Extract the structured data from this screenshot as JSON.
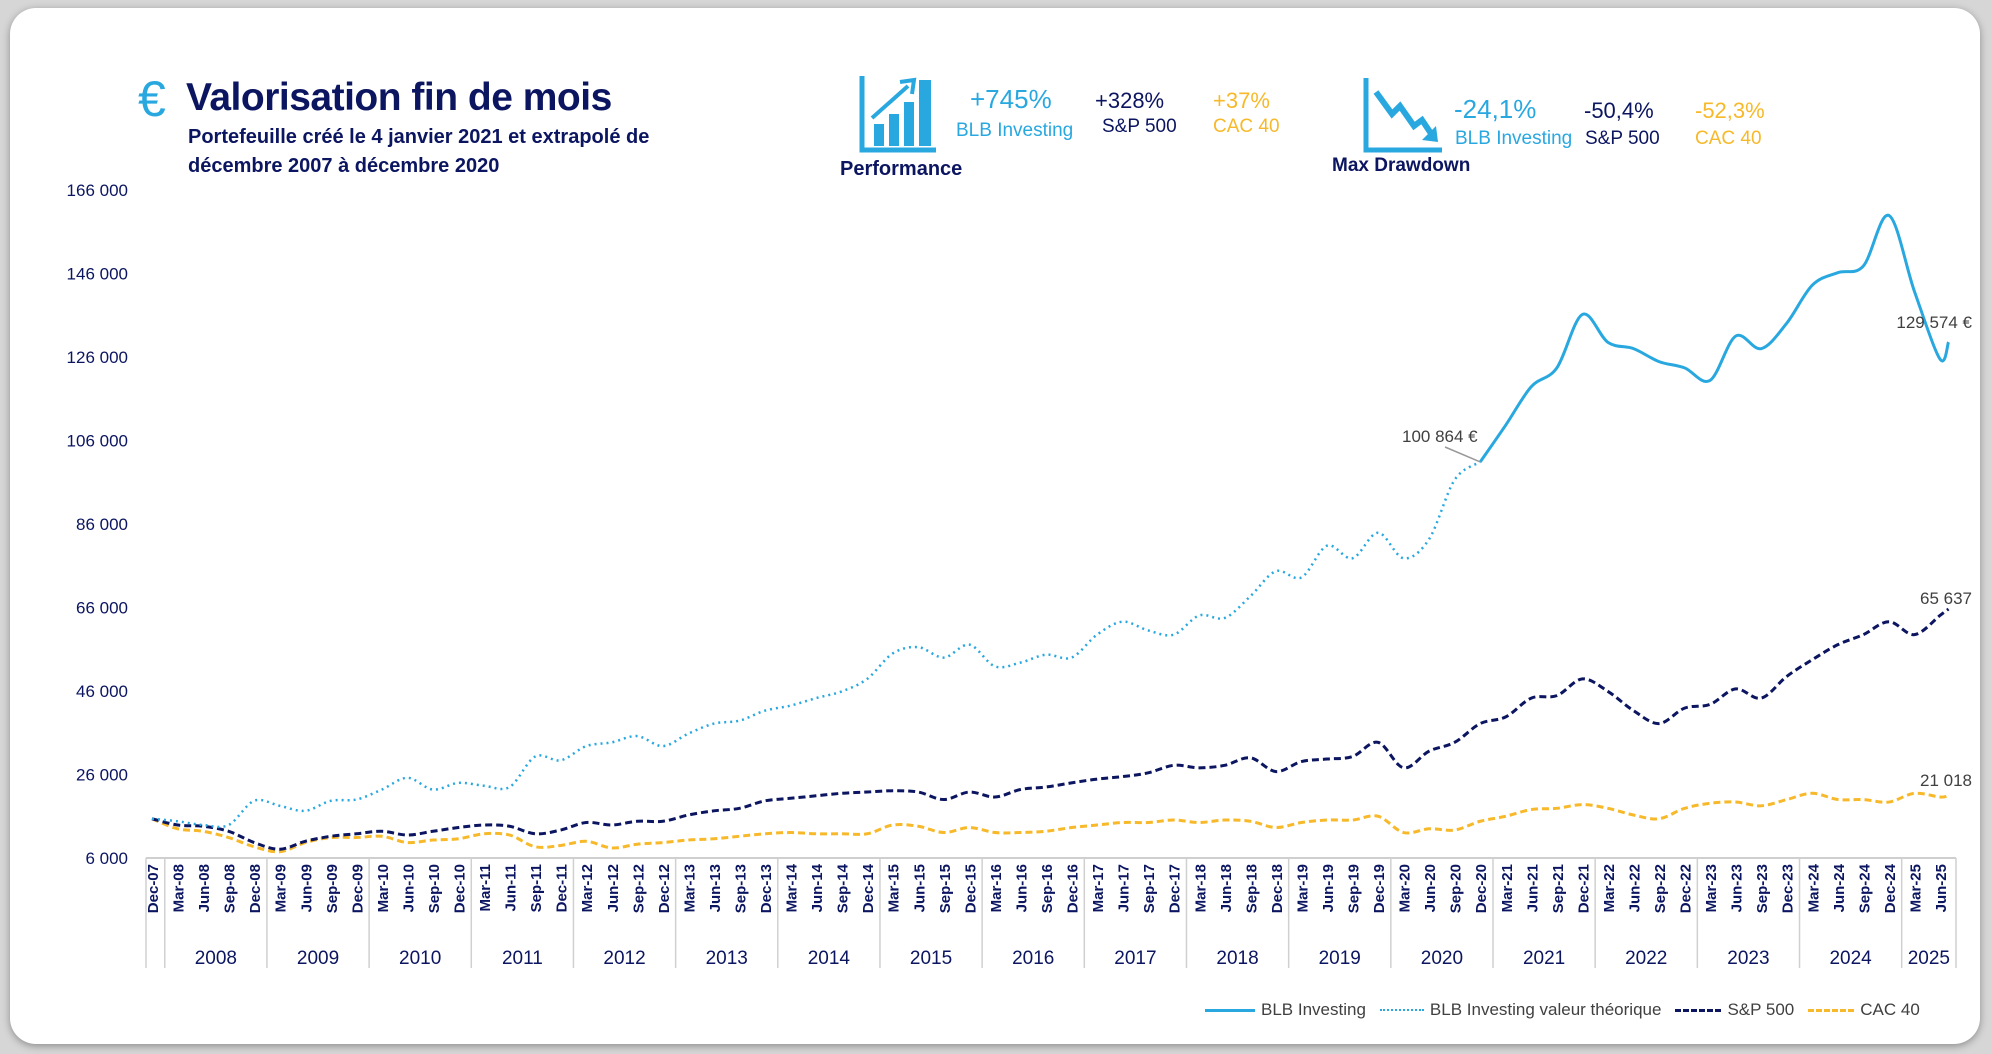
{
  "header": {
    "currency_symbol": "€",
    "title": "Valorisation fin de mois",
    "subtitle_line1": "Portefeuille créé le 4 janvier 2021 et extrapolé de",
    "subtitle_line2": "décembre 2007 à décembre 2020"
  },
  "performance": {
    "label": "Performance",
    "icon": "bar-chart-up-icon",
    "blb_value": "+745%",
    "blb_label": "BLB Investing",
    "sp_value": "+328%",
    "sp_label": "S&P 500",
    "cac_value": "+37%",
    "cac_label": "CAC 40"
  },
  "drawdown": {
    "label": "Max Drawdown",
    "icon": "chart-down-icon",
    "blb_value": "-24,1%",
    "blb_label": "BLB Investing",
    "sp_value": "-50,4%",
    "sp_label": "S&P 500",
    "cac_value": "-52,3%",
    "cac_label": "CAC 40"
  },
  "colors": {
    "navy": "#0b1560",
    "blue": "#29a8e0",
    "yellow": "#f7b92a"
  },
  "chart_data": {
    "type": "line",
    "title": "Valorisation fin de mois",
    "xlabel": "",
    "ylabel": "",
    "ylim": [
      6000,
      166000
    ],
    "y_ticks": [
      6000,
      26000,
      46000,
      66000,
      86000,
      106000,
      126000,
      146000,
      166000
    ],
    "y_tick_labels": [
      "6 000",
      "26 000",
      "46 000",
      "66 000",
      "86 000",
      "106 000",
      "126 000",
      "146 000",
      "166 000"
    ],
    "x_labels": [
      "Dec-07",
      "Mar-08",
      "Jun-08",
      "Sep-08",
      "Dec-08",
      "Mar-09",
      "Jun-09",
      "Sep-09",
      "Dec-09",
      "Mar-10",
      "Jun-10",
      "Sep-10",
      "Dec-10",
      "Mar-11",
      "Jun-11",
      "Sep-11",
      "Dec-11",
      "Mar-12",
      "Jun-12",
      "Sep-12",
      "Dec-12",
      "Mar-13",
      "Jun-13",
      "Sep-13",
      "Dec-13",
      "Mar-14",
      "Jun-14",
      "Sep-14",
      "Dec-14",
      "Mar-15",
      "Jun-15",
      "Sep-15",
      "Dec-15",
      "Mar-16",
      "Jun-16",
      "Sep-16",
      "Dec-16",
      "Mar-17",
      "Jun-17",
      "Sep-17",
      "Dec-17",
      "Mar-18",
      "Jun-18",
      "Sep-18",
      "Dec-18",
      "Mar-19",
      "Jun-19",
      "Sep-19",
      "Dec-19",
      "Mar-20",
      "Jun-20",
      "Sep-20",
      "Dec-20",
      "Mar-21",
      "Jun-21",
      "Sep-21",
      "Dec-21",
      "Mar-22",
      "Jun-22",
      "Sep-22",
      "Dec-22",
      "Mar-23",
      "Jun-23",
      "Sep-23",
      "Dec-23",
      "Mar-24",
      "Jun-24",
      "Sep-24",
      "Dec-24",
      "Mar-25",
      "Jun-25"
    ],
    "year_labels": [
      "2008",
      "2009",
      "2010",
      "2011",
      "2012",
      "2013",
      "2014",
      "2015",
      "2016",
      "2017",
      "2018",
      "2019",
      "2020",
      "2021",
      "2022",
      "2023",
      "2024",
      "2025"
    ],
    "grid": false,
    "legend_position": "bottom-right",
    "series": [
      {
        "name": "BLB Investing",
        "style": "solid",
        "color": "#29a8e0",
        "start_index": 52,
        "values": [
          100864,
          109700,
          118900,
          123400,
          136200,
          129500,
          128000,
          124900,
          123400,
          120400,
          131000,
          128000,
          134100,
          143200,
          146200,
          147800,
          159900,
          141700,
          125500
        ],
        "final_value": 129574,
        "final_label": "129 574 €",
        "start_label": "100 864 €"
      },
      {
        "name": "BLB Investing valeur théorique",
        "style": "dotted",
        "color": "#29a8e0",
        "start_index": 0,
        "values": [
          15400,
          14800,
          13900,
          13900,
          19700,
          18500,
          17300,
          19700,
          20000,
          22400,
          25200,
          22400,
          24000,
          23300,
          23000,
          30300,
          29400,
          32800,
          33700,
          35200,
          32800,
          35800,
          38200,
          38900,
          41300,
          42500,
          44300,
          45900,
          48900,
          55000,
          56500,
          54000,
          57100,
          51900,
          52800,
          54700,
          54000,
          59500,
          62600,
          60500,
          59500,
          64100,
          63500,
          68700,
          74700,
          73200,
          80800,
          77800,
          83900,
          77800,
          82400,
          96600,
          100864
        ]
      },
      {
        "name": "S&P 500",
        "style": "dashed",
        "color": "#0b1560",
        "start_index": 0,
        "values": [
          15400,
          13900,
          13600,
          12400,
          9700,
          8100,
          10000,
          11200,
          11800,
          12400,
          11500,
          12400,
          13300,
          13900,
          13600,
          11800,
          12700,
          14500,
          13900,
          14800,
          14800,
          16300,
          17300,
          17900,
          19700,
          20300,
          20900,
          21500,
          21800,
          22100,
          21800,
          20000,
          21800,
          20600,
          22400,
          23000,
          24000,
          24900,
          25500,
          26400,
          28200,
          27600,
          28200,
          30000,
          26700,
          29100,
          29700,
          30300,
          33700,
          27600,
          31600,
          33700,
          38200,
          39800,
          44300,
          44900,
          48900,
          45900,
          41300,
          38200,
          41900,
          42800,
          46500,
          44300,
          49500,
          53500,
          57100,
          59500,
          62600,
          59500,
          64100
        ],
        "final_value": 65637,
        "final_label": "65 637"
      },
      {
        "name": "CAC 40",
        "style": "dashed",
        "color": "#f7b92a",
        "start_index": 0,
        "values": [
          15400,
          13000,
          12400,
          10900,
          8700,
          7500,
          9700,
          10900,
          10900,
          11200,
          9700,
          10300,
          10600,
          11800,
          11500,
          8700,
          9000,
          10000,
          8400,
          9300,
          9700,
          10300,
          10600,
          11200,
          11800,
          12100,
          11800,
          11800,
          11800,
          13900,
          13600,
          12100,
          13300,
          12100,
          12100,
          12400,
          13300,
          13900,
          14500,
          14500,
          15100,
          14500,
          15100,
          14800,
          13300,
          14500,
          15100,
          15100,
          16000,
          12100,
          13000,
          12700,
          14800,
          16000,
          17600,
          17900,
          18800,
          17900,
          16300,
          15400,
          17900,
          19100,
          19400,
          18500,
          20000,
          21500,
          20000,
          20000,
          19400,
          21500,
          20600
        ],
        "final_value": 21018,
        "final_label": "21 018"
      }
    ]
  },
  "legend": {
    "blb": "BLB Investing",
    "blb_theo": "BLB Investing valeur théorique",
    "sp": "S&P 500",
    "cac": "CAC 40"
  }
}
